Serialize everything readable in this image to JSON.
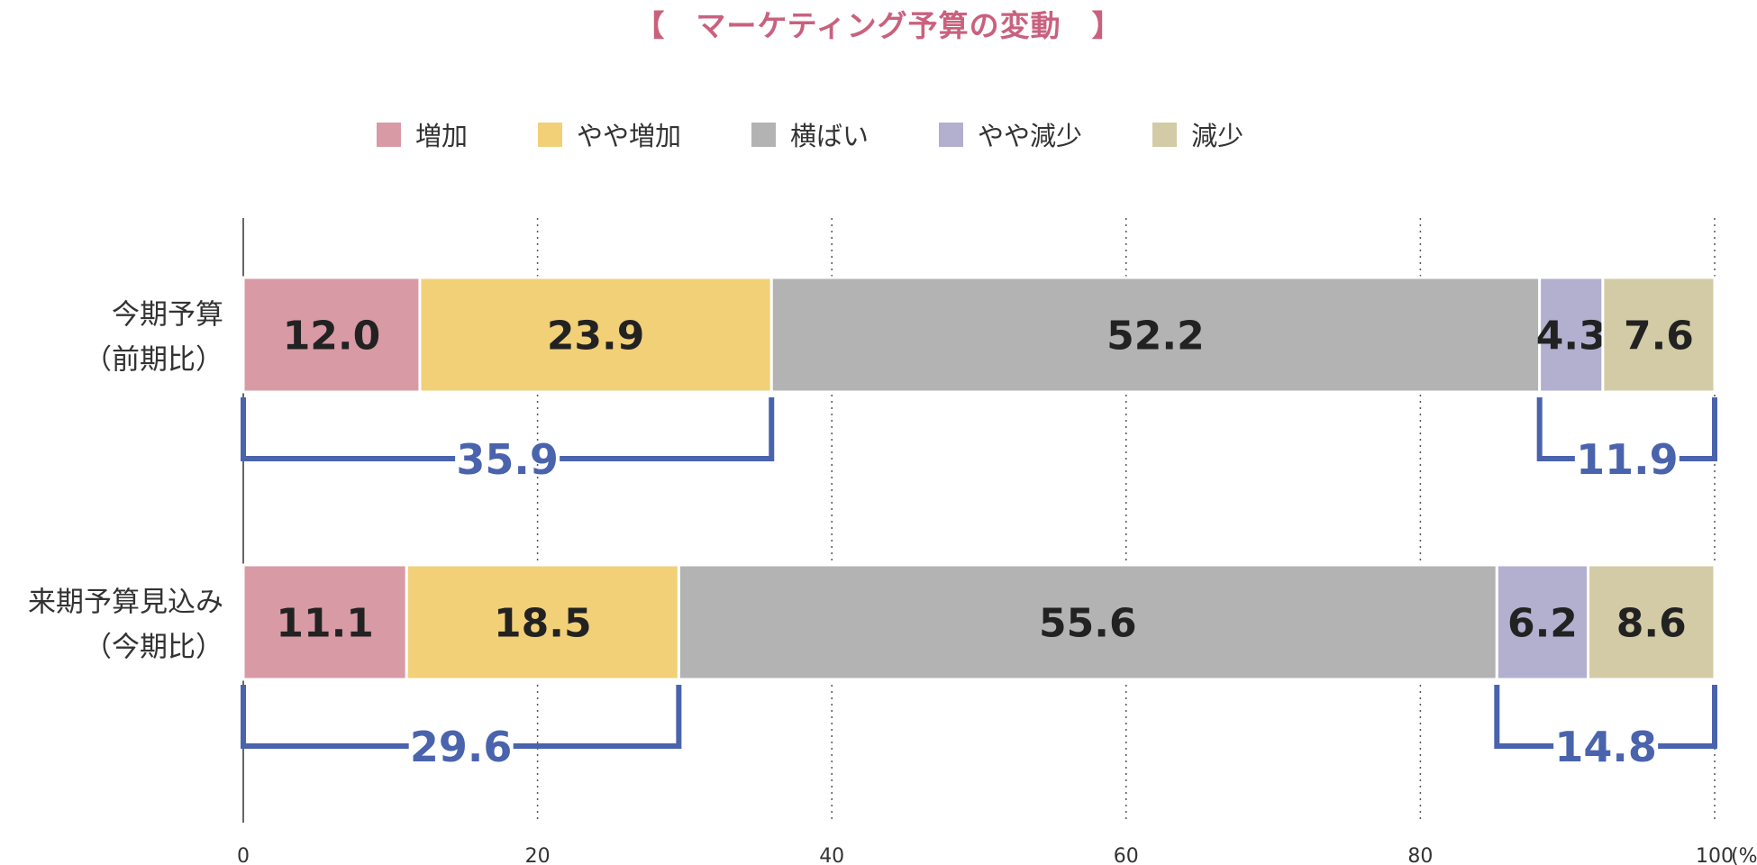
{
  "chart_data": {
    "type": "bar",
    "orientation": "horizontal",
    "stacked": true,
    "title": "【　マーケティング予算の変動　】",
    "categories": [
      [
        "今期予算",
        "（前期比）"
      ],
      [
        "来期予算見込み",
        "（今期比）"
      ]
    ],
    "series": [
      {
        "name": "増加",
        "color": "#d89aa5",
        "values": [
          12.0,
          11.1
        ]
      },
      {
        "name": "やや増加",
        "color": "#f2d077",
        "values": [
          23.9,
          18.5
        ]
      },
      {
        "name": "横ばい",
        "color": "#b3b3b3",
        "values": [
          52.2,
          55.6
        ]
      },
      {
        "name": "やや減少",
        "color": "#b2afcf",
        "values": [
          4.3,
          6.2
        ]
      },
      {
        "name": "減少",
        "color": "#d3cba5",
        "values": [
          7.6,
          8.6
        ]
      }
    ],
    "value_labels": [
      [
        "12.0",
        "23.9",
        "52.2",
        "4.3",
        "7.6"
      ],
      [
        "11.1",
        "18.5",
        "55.6",
        "6.2",
        "8.6"
      ]
    ],
    "bracket_annotations": [
      {
        "category_index": 0,
        "from": 0,
        "to": 35.9,
        "label": "35.9"
      },
      {
        "category_index": 0,
        "from": 88.1,
        "to": 100,
        "label": "11.9"
      },
      {
        "category_index": 1,
        "from": 0,
        "to": 29.6,
        "label": "29.6"
      },
      {
        "category_index": 1,
        "from": 85.2,
        "to": 100,
        "label": "14.8"
      }
    ],
    "xlim": [
      0,
      100
    ],
    "xticks": [
      0,
      20,
      40,
      60,
      80,
      100
    ],
    "xtick_labels": [
      "0",
      "20",
      "40",
      "60",
      "80",
      "100"
    ],
    "xunit": "(%)",
    "xlabel": "",
    "ylabel": "",
    "grid": "vertical dotted",
    "legend_position": "top",
    "bracket_color": "#4a63ad",
    "label_color": "#222222"
  }
}
